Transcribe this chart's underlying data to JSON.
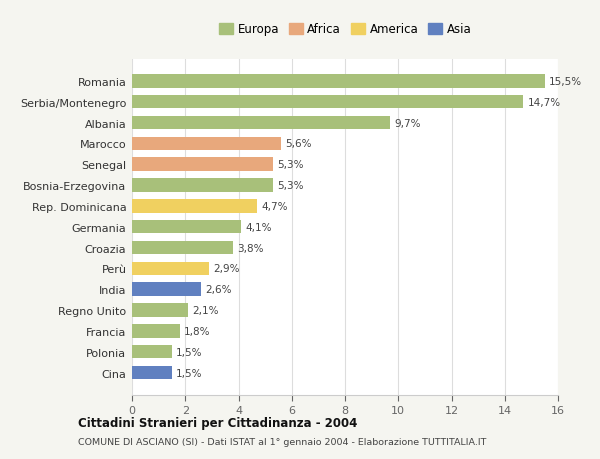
{
  "categories": [
    "Cina",
    "Polonia",
    "Francia",
    "Regno Unito",
    "India",
    "Perù",
    "Croazia",
    "Germania",
    "Rep. Dominicana",
    "Bosnia-Erzegovina",
    "Senegal",
    "Marocco",
    "Albania",
    "Serbia/Montenegro",
    "Romania"
  ],
  "values": [
    1.5,
    1.5,
    1.8,
    2.1,
    2.6,
    2.9,
    3.8,
    4.1,
    4.7,
    5.3,
    5.3,
    5.6,
    9.7,
    14.7,
    15.5
  ],
  "continents": [
    "Asia",
    "Europa",
    "Europa",
    "Europa",
    "Asia",
    "America",
    "Europa",
    "Europa",
    "America",
    "Europa",
    "Africa",
    "Africa",
    "Europa",
    "Europa",
    "Europa"
  ],
  "labels": [
    "1,5%",
    "1,5%",
    "1,8%",
    "2,1%",
    "2,6%",
    "2,9%",
    "3,8%",
    "4,1%",
    "4,7%",
    "5,3%",
    "5,3%",
    "5,6%",
    "9,7%",
    "14,7%",
    "15,5%"
  ],
  "colors": {
    "Europa": "#a8c07a",
    "Africa": "#e8a87c",
    "America": "#f0d060",
    "Asia": "#6080c0"
  },
  "legend_entries": [
    "Europa",
    "Africa",
    "America",
    "Asia"
  ],
  "xlim": [
    0,
    16
  ],
  "xticks": [
    0,
    2,
    4,
    6,
    8,
    10,
    12,
    14,
    16
  ],
  "title": "Cittadini Stranieri per Cittadinanza - 2004",
  "subtitle": "COMUNE DI ASCIANO (SI) - Dati ISTAT al 1° gennaio 2004 - Elaborazione TUTTITALIA.IT",
  "background_color": "#f5f5f0",
  "plot_bg_color": "#ffffff",
  "grid_color": "#dddddd",
  "bar_height": 0.65,
  "label_fontsize": 7.5,
  "ytick_fontsize": 8,
  "xtick_fontsize": 8
}
